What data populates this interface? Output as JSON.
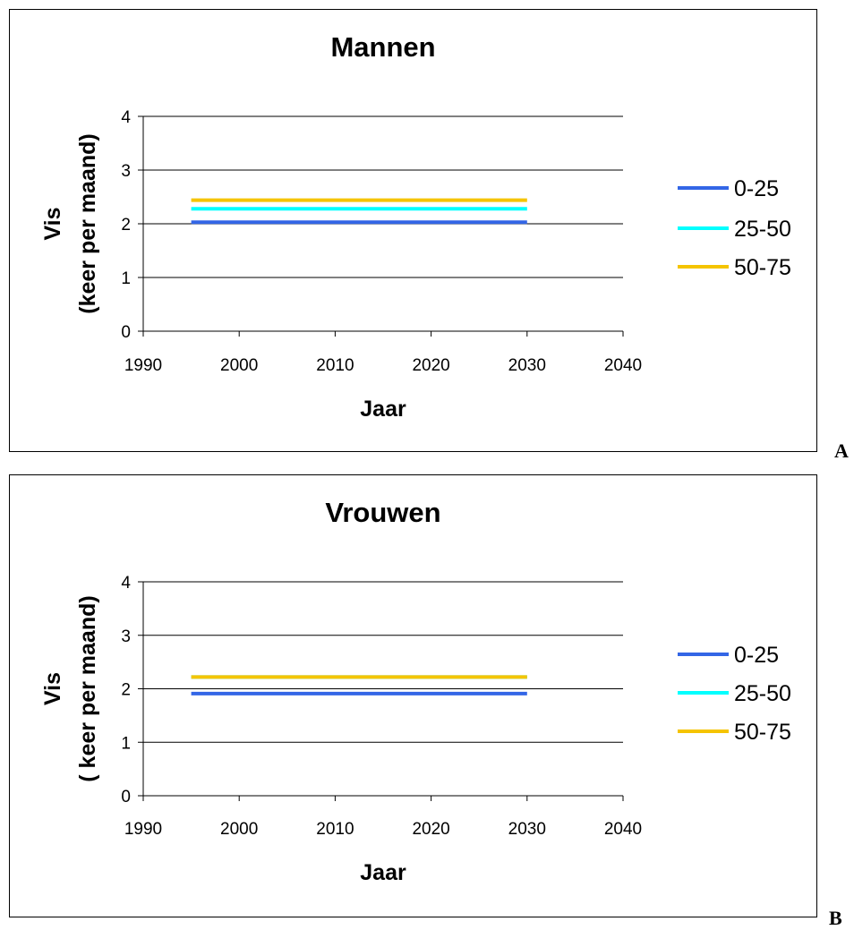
{
  "chart_data": [
    {
      "type": "line",
      "panel_label": "A",
      "title": "Mannen",
      "xlabel": "Jaar",
      "ylabel": [
        "Vis",
        "(keer per maand)"
      ],
      "xlim": [
        1990,
        2040
      ],
      "ylim": [
        0,
        4
      ],
      "xticks": [
        1990,
        2000,
        2010,
        2020,
        2030,
        2040
      ],
      "yticks": [
        0,
        1,
        2,
        3,
        4
      ],
      "grid": "horizontal",
      "legend_position": "right",
      "series": [
        {
          "name": "0-25",
          "color": "#3366e6",
          "x": [
            1995,
            2030
          ],
          "y": [
            2.03,
            2.03
          ]
        },
        {
          "name": "25-50",
          "color": "#00ffff",
          "x": [
            1995,
            2030
          ],
          "y": [
            2.28,
            2.28
          ]
        },
        {
          "name": "50-75",
          "color": "#f5c400",
          "x": [
            1995,
            2030
          ],
          "y": [
            2.44,
            2.44
          ]
        }
      ]
    },
    {
      "type": "line",
      "panel_label": "B",
      "title": "Vrouwen",
      "xlabel": "Jaar",
      "ylabel": [
        "Vis",
        "( keer per maand)"
      ],
      "xlim": [
        1990,
        2040
      ],
      "ylim": [
        0,
        4
      ],
      "xticks": [
        1990,
        2000,
        2010,
        2020,
        2030,
        2040
      ],
      "yticks": [
        0,
        1,
        2,
        3,
        4
      ],
      "grid": "horizontal",
      "legend_position": "right",
      "series": [
        {
          "name": "0-25",
          "color": "#3366e6",
          "x": [
            1995,
            2030
          ],
          "y": [
            1.91,
            1.91
          ]
        },
        {
          "name": "25-50",
          "color": "#00ffff",
          "x": [
            1995,
            2030
          ],
          "y": [
            2.22,
            2.22
          ]
        },
        {
          "name": "50-75",
          "color": "#f5c400",
          "x": [
            1995,
            2030
          ],
          "y": [
            2.22,
            2.22
          ]
        }
      ]
    }
  ]
}
